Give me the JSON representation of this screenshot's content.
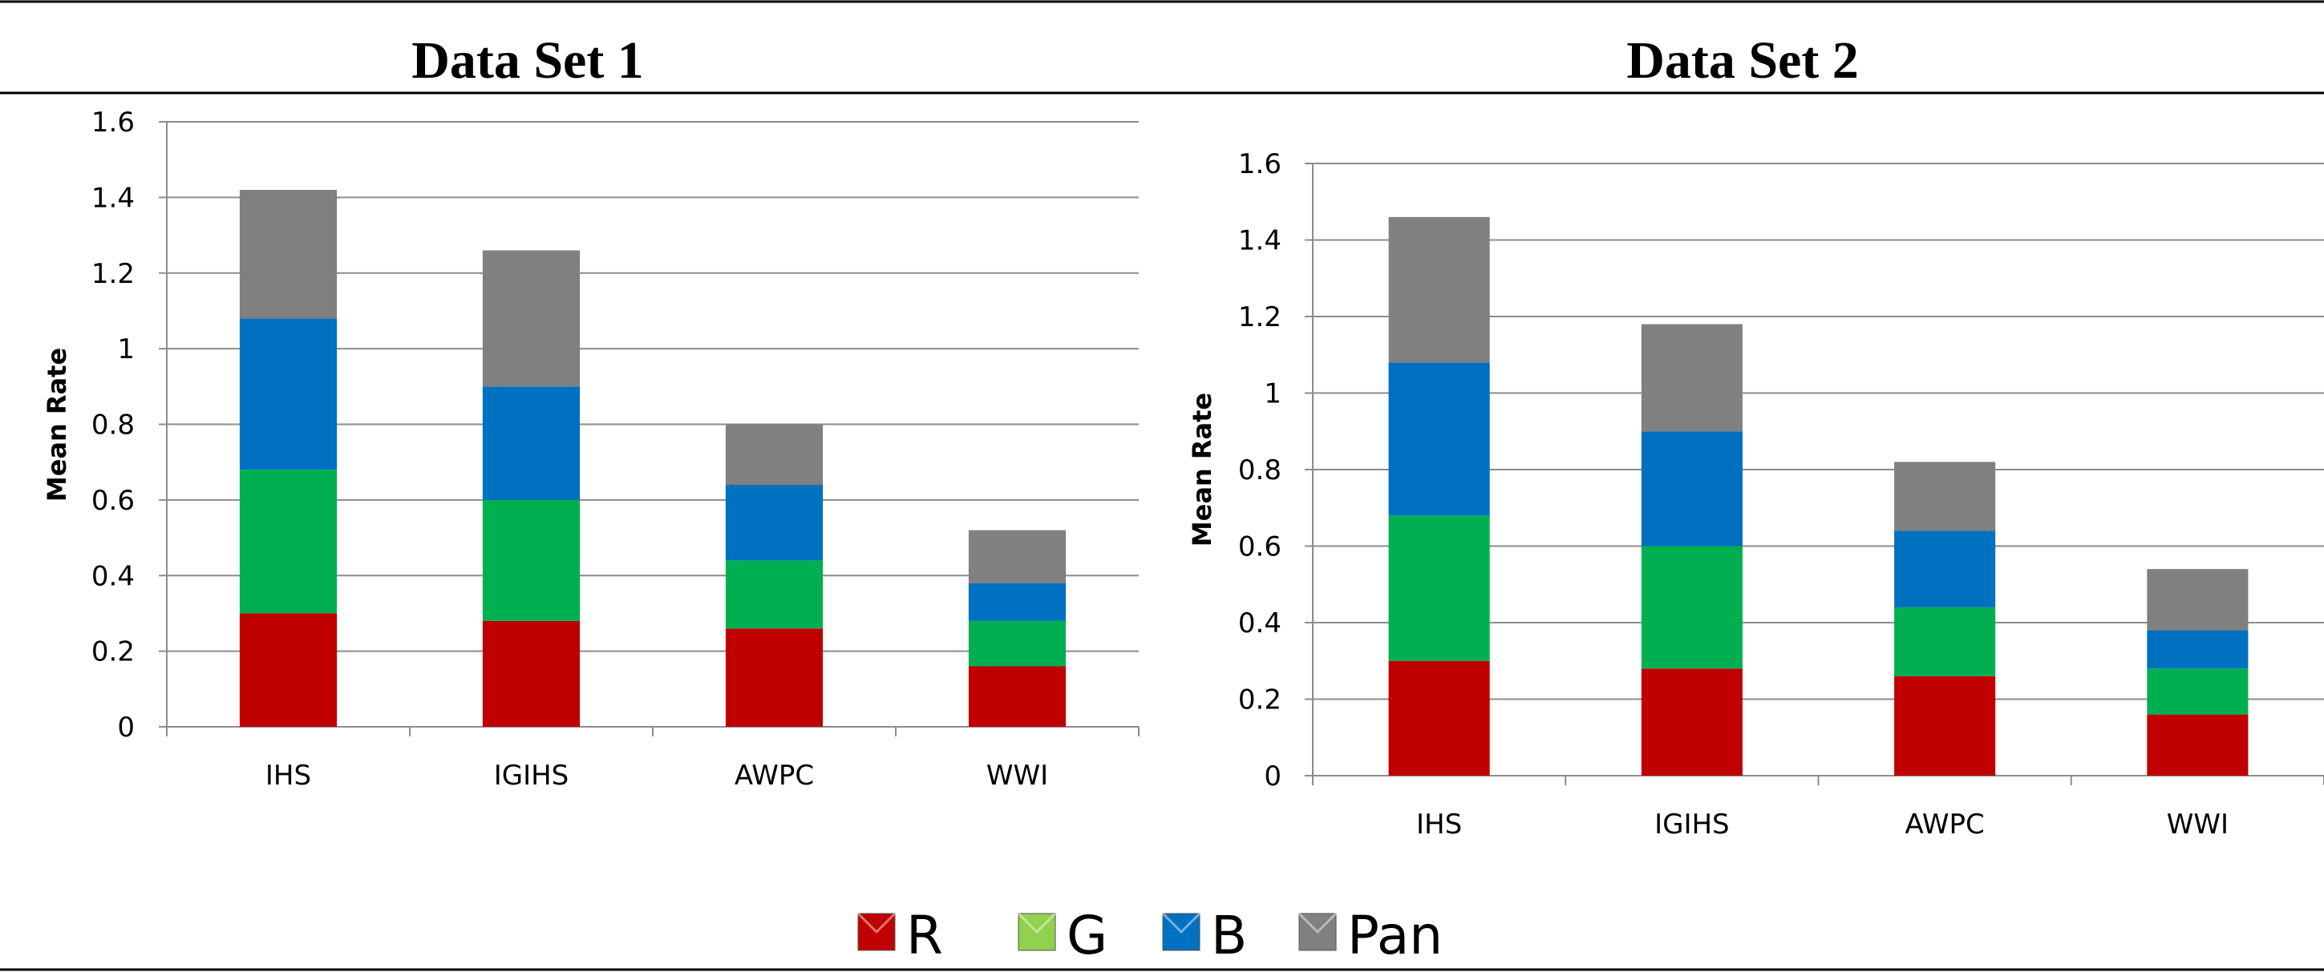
{
  "chart_data": [
    {
      "type": "bar",
      "stacked": true,
      "title": "Data Set 1",
      "ylabel": "Mean Rate",
      "xlabel": "",
      "ylim": [
        0,
        1.6
      ],
      "yticks": [
        "0",
        "0.2",
        "0.4",
        "0.6",
        "0.8",
        "1",
        "1.2",
        "1.4",
        "1.6"
      ],
      "categories": [
        "IHS",
        "IGIHS",
        "AWPC",
        "WWI"
      ],
      "series": [
        {
          "name": "R",
          "color": "#c00000",
          "values": [
            0.3,
            0.28,
            0.26,
            0.16
          ]
        },
        {
          "name": "G",
          "color": "#00b050",
          "values": [
            0.38,
            0.32,
            0.18,
            0.12
          ]
        },
        {
          "name": "B",
          "color": "#0070c0",
          "values": [
            0.4,
            0.3,
            0.2,
            0.1
          ]
        },
        {
          "name": "Pan",
          "color": "#808080",
          "values": [
            0.34,
            0.36,
            0.16,
            0.14
          ]
        }
      ],
      "grid": true
    },
    {
      "type": "bar",
      "stacked": true,
      "title": "Data Set 2",
      "ylabel": "Mean Rate",
      "xlabel": "",
      "ylim": [
        0,
        1.6
      ],
      "yticks": [
        "0",
        "0.2",
        "0.4",
        "0.6",
        "0.8",
        "1",
        "1.2",
        "1.4",
        "1.6"
      ],
      "categories": [
        "IHS",
        "IGIHS",
        "AWPC",
        "WWI"
      ],
      "series": [
        {
          "name": "R",
          "color": "#c00000",
          "values": [
            0.3,
            0.28,
            0.26,
            0.16
          ]
        },
        {
          "name": "G",
          "color": "#00b050",
          "values": [
            0.38,
            0.32,
            0.18,
            0.12
          ]
        },
        {
          "name": "B",
          "color": "#0070c0",
          "values": [
            0.4,
            0.3,
            0.2,
            0.1
          ]
        },
        {
          "name": "Pan",
          "color": "#808080",
          "values": [
            0.38,
            0.28,
            0.18,
            0.16
          ]
        }
      ],
      "grid": true
    }
  ],
  "legend": {
    "placement": "bottom-center",
    "items": [
      {
        "label": "R",
        "color": "#c00000"
      },
      {
        "label": "G",
        "color": "#92d050"
      },
      {
        "label": "B",
        "color": "#0070c0"
      },
      {
        "label": "Pan",
        "color": "#808080"
      }
    ]
  }
}
